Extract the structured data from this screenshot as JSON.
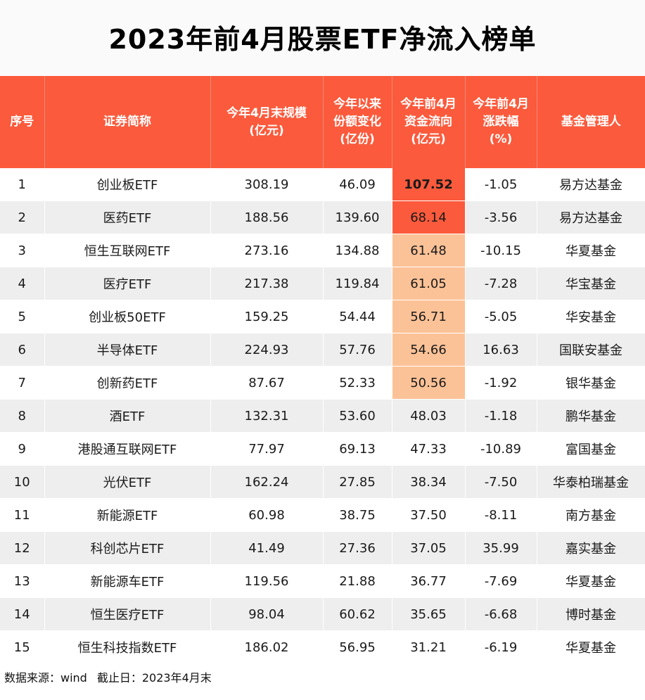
{
  "title": "2023年前4月股票ETF净流入榜单",
  "headers": [
    "序号",
    "证券简称",
    "今年4月末规模\n(亿元)",
    "今年以来\n份额变化\n(亿份)",
    "今年前4月\n资金流向\n(亿元)",
    "今年前4月\n涨跌幅\n(%)",
    "基金管理人"
  ],
  "rows": [
    [
      "1",
      "创业板ETF",
      "308.19",
      "46.09",
      "107.52",
      "-1.05",
      "易方达基金"
    ],
    [
      "2",
      "医药ETF",
      "188.56",
      "139.60",
      "68.14",
      "-3.56",
      "易方达基金"
    ],
    [
      "3",
      "恒生互联网ETF",
      "273.16",
      "134.88",
      "61.48",
      "-10.15",
      "华夏基金"
    ],
    [
      "4",
      "医疗ETF",
      "217.38",
      "119.84",
      "61.05",
      "-7.28",
      "华宝基金"
    ],
    [
      "5",
      "创业板50ETF",
      "159.25",
      "54.44",
      "56.71",
      "-5.05",
      "华安基金"
    ],
    [
      "6",
      "半导体ETF",
      "224.93",
      "57.76",
      "54.66",
      "16.63",
      "国联安基金"
    ],
    [
      "7",
      "创新药ETF",
      "87.67",
      "52.33",
      "50.56",
      "-1.92",
      "银华基金"
    ],
    [
      "8",
      "酒ETF",
      "132.31",
      "53.60",
      "48.03",
      "-1.18",
      "鹏华基金"
    ],
    [
      "9",
      "港股通互联网ETF",
      "77.97",
      "69.13",
      "47.33",
      "-10.89",
      "富国基金"
    ],
    [
      "10",
      "光伏ETF",
      "162.24",
      "27.85",
      "38.34",
      "-7.50",
      "华泰柏瑞基金"
    ],
    [
      "11",
      "新能源ETF",
      "60.98",
      "38.75",
      "37.50",
      "-8.11",
      "南方基金"
    ],
    [
      "12",
      "科创芯片ETF",
      "41.49",
      "27.36",
      "37.05",
      "35.99",
      "嘉实基金"
    ],
    [
      "13",
      "新能源车ETF",
      "119.56",
      "21.88",
      "36.77",
      "-7.69",
      "华夏基金"
    ],
    [
      "14",
      "恒生医疗ETF",
      "98.04",
      "60.62",
      "35.65",
      "-6.68",
      "博时基金"
    ],
    [
      "15",
      "恒生科技指数ETF",
      "186.02",
      "56.95",
      "31.21",
      "-6.19",
      "华夏基金"
    ]
  ],
  "highlight": {
    "red_rows": [
      0,
      1
    ],
    "peach_rows": [
      2,
      3,
      4,
      5,
      6
    ],
    "bold_rows": [
      0
    ],
    "column": 4,
    "red_color": "#fb5a3c",
    "peach_color": "#fcc297"
  },
  "footer": {
    "source": "数据来源：wind",
    "cutoff": "截止日：2023年4月末"
  }
}
